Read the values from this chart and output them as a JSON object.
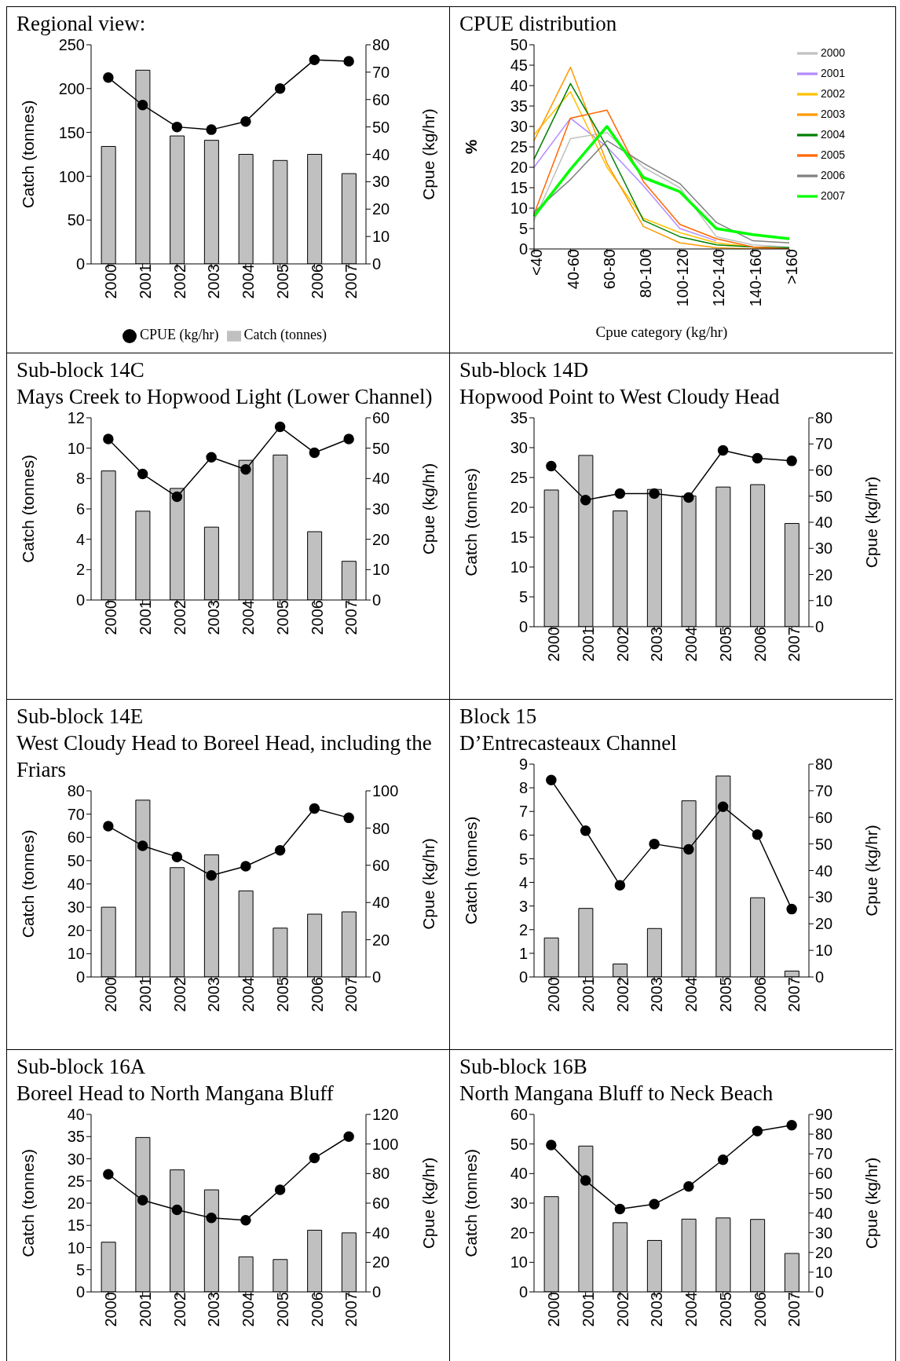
{
  "chart_data": [
    {
      "type": "bar",
      "title": "Regional view:",
      "ylabel": "Catch (tonnes)",
      "y2label": "Cpue (kg/hr)",
      "categories": [
        "2000",
        "2001",
        "2002",
        "2003",
        "2004",
        "2005",
        "2006",
        "2007"
      ],
      "ylim": [
        0,
        250
      ],
      "yticks": [
        0,
        50,
        100,
        150,
        200,
        250
      ],
      "y2lim": [
        0,
        80
      ],
      "y2ticks": [
        0,
        10,
        20,
        30,
        40,
        50,
        60,
        70,
        80
      ],
      "grid": false,
      "legend": "bottom",
      "series": [
        {
          "name": "Catch (tonnes)",
          "color": "#c0c0c0",
          "values": [
            134,
            221,
            146,
            141,
            125,
            118,
            125,
            103
          ]
        },
        {
          "name": "CPUE (kg/hr)",
          "type": "line",
          "axis": "y2",
          "marker": "circle",
          "color": "#000000",
          "values": [
            68,
            58,
            50,
            49,
            52,
            64,
            74.5,
            74
          ]
        }
      ]
    },
    {
      "type": "line",
      "title": "CPUE distribution",
      "xlabel": "Cpue category (kg/hr)",
      "ylabel": "%",
      "categories": [
        "<40",
        "40-60",
        "60-80",
        "80-100",
        "100-120",
        "120-140",
        "140-160",
        ">160"
      ],
      "ylim": [
        0,
        50
      ],
      "yticks": [
        0,
        5,
        10,
        15,
        20,
        25,
        30,
        35,
        40,
        45,
        50
      ],
      "grid": false,
      "legend": "top right",
      "marker": "none",
      "series": [
        {
          "name": "2000",
          "color": "#c0c0c0",
          "values": [
            7,
            27,
            28.5,
            20,
            15,
            3,
            1,
            0.5
          ]
        },
        {
          "name": "2001",
          "color": "#b28cff",
          "values": [
            20,
            32,
            25,
            15.5,
            5,
            2,
            null,
            null
          ]
        },
        {
          "name": "2002",
          "color": "#ffc000",
          "values": [
            28,
            38.5,
            20,
            7.5,
            4,
            1.5,
            0.5,
            0
          ]
        },
        {
          "name": "2003",
          "color": "#ff9900",
          "values": [
            26.5,
            44.5,
            21,
            5.5,
            1.5,
            0.3,
            0,
            0
          ]
        },
        {
          "name": "2004",
          "color": "#008000",
          "values": [
            22,
            40.5,
            25,
            7,
            3,
            1,
            0.5,
            0.3
          ]
        },
        {
          "name": "2005",
          "color": "#ff6600",
          "values": [
            8.5,
            32,
            34,
            16.5,
            6,
            2.5,
            0.5,
            0
          ]
        },
        {
          "name": "2006",
          "color": "#808080",
          "values": [
            9,
            17,
            26.5,
            21,
            16,
            6.5,
            2,
            1.5
          ]
        },
        {
          "name": "2007",
          "color": "#00ff00",
          "values": [
            8,
            19.5,
            30,
            17.5,
            14,
            5,
            3.5,
            2.5
          ]
        }
      ]
    },
    {
      "type": "bar",
      "title": "Sub-block 14C",
      "subtitle": "Mays Creek to Hopwood Light (Lower Channel)",
      "ylabel": "Catch (tonnes)",
      "y2label": "Cpue (kg/hr)",
      "categories": [
        "2000",
        "2001",
        "2002",
        "2003",
        "2004",
        "2005",
        "2006",
        "2007"
      ],
      "ylim": [
        0,
        12
      ],
      "yticks": [
        0,
        2,
        4,
        6,
        8,
        10,
        12
      ],
      "y2lim": [
        0,
        60
      ],
      "y2ticks": [
        0,
        10,
        20,
        30,
        40,
        50,
        60
      ],
      "grid": false,
      "series": [
        {
          "color": "#c0c0c0",
          "values": [
            8.5,
            5.85,
            7.35,
            4.8,
            9.2,
            9.55,
            4.5,
            2.55
          ]
        },
        {
          "type": "line",
          "axis": "y2",
          "marker": "circle",
          "color": "#000000",
          "values": [
            53,
            41.5,
            34,
            47,
            43,
            57,
            48.5,
            53
          ]
        }
      ]
    },
    {
      "type": "bar",
      "title": "Sub-block 14D",
      "subtitle": "Hopwood Point to West Cloudy Head",
      "ylabel": "Catch (tonnes)",
      "y2label": "Cpue (kg/hr)",
      "categories": [
        "2000",
        "2001",
        "2002",
        "2003",
        "2004",
        "2005",
        "2006",
        "2007"
      ],
      "ylim": [
        0,
        35
      ],
      "yticks": [
        0,
        5,
        10,
        15,
        20,
        25,
        30,
        35
      ],
      "y2lim": [
        0,
        80
      ],
      "y2ticks": [
        0,
        10,
        20,
        30,
        40,
        50,
        60,
        70,
        80
      ],
      "grid": false,
      "series": [
        {
          "color": "#c0c0c0",
          "values": [
            22.9,
            28.7,
            19.4,
            23,
            21.9,
            23.4,
            23.8,
            17.3
          ]
        },
        {
          "type": "line",
          "axis": "y2",
          "marker": "circle",
          "color": "#000000",
          "values": [
            61.5,
            48.5,
            51,
            51,
            49.5,
            67.5,
            64.5,
            63.5
          ]
        }
      ]
    },
    {
      "type": "bar",
      "title": "Sub-block 14E",
      "subtitle": "West Cloudy Head to Boreel Head, including the Friars",
      "ylabel": "Catch (tonnes)",
      "y2label": "Cpue (kg/hr)",
      "categories": [
        "2000",
        "2001",
        "2002",
        "2003",
        "2004",
        "2005",
        "2006",
        "2007"
      ],
      "ylim": [
        0,
        80
      ],
      "yticks": [
        0,
        10,
        20,
        30,
        40,
        50,
        60,
        70,
        80
      ],
      "y2lim": [
        0,
        100
      ],
      "y2ticks": [
        0,
        20,
        40,
        60,
        80,
        100
      ],
      "grid": false,
      "series": [
        {
          "color": "#c0c0c0",
          "values": [
            30,
            76,
            47,
            52.5,
            37,
            21,
            27,
            28
          ]
        },
        {
          "type": "line",
          "axis": "y2",
          "marker": "circle",
          "color": "#000000",
          "values": [
            81,
            70.5,
            64.5,
            54.5,
            59.5,
            68,
            90.5,
            85.5
          ]
        }
      ]
    },
    {
      "type": "bar",
      "title": "Block 15",
      "subtitle": "D’Entrecasteaux Channel",
      "ylabel": "Catch (tonnes)",
      "y2label": "Cpue (kg/hr)",
      "categories": [
        "2000",
        "2001",
        "2002",
        "2003",
        "2004",
        "2005",
        "2006",
        "2007"
      ],
      "ylim": [
        0,
        9
      ],
      "yticks": [
        0,
        1,
        2,
        3,
        4,
        5,
        6,
        7,
        8,
        9
      ],
      "y2lim": [
        0,
        80
      ],
      "y2ticks": [
        0,
        10,
        20,
        30,
        40,
        50,
        60,
        70,
        80
      ],
      "grid": false,
      "series": [
        {
          "color": "#c0c0c0",
          "values": [
            1.65,
            2.9,
            0.55,
            2.05,
            7.45,
            8.5,
            3.35,
            0.25
          ]
        },
        {
          "type": "line",
          "axis": "y2",
          "marker": "circle",
          "color": "#000000",
          "values": [
            74,
            55,
            34.5,
            50,
            48,
            64,
            53.5,
            25.5
          ]
        }
      ]
    },
    {
      "type": "bar",
      "title": "Sub-block 16A",
      "subtitle": "Boreel Head to North Mangana Bluff",
      "ylabel": "Catch (tonnes)",
      "y2label": "Cpue (kg/hr)",
      "categories": [
        "2000",
        "2001",
        "2002",
        "2003",
        "2004",
        "2005",
        "2006",
        "2007"
      ],
      "ylim": [
        0,
        40
      ],
      "yticks": [
        0,
        5,
        10,
        15,
        20,
        25,
        30,
        35,
        40
      ],
      "y2lim": [
        0,
        120
      ],
      "y2ticks": [
        0,
        20,
        40,
        60,
        80,
        100,
        120
      ],
      "grid": false,
      "series": [
        {
          "color": "#c0c0c0",
          "values": [
            11.2,
            34.8,
            27.5,
            23,
            7.9,
            7.3,
            13.9,
            13.3
          ]
        },
        {
          "type": "line",
          "axis": "y2",
          "marker": "circle",
          "color": "#000000",
          "values": [
            79.5,
            62,
            55.5,
            50,
            48.5,
            69,
            90.5,
            105
          ]
        }
      ]
    },
    {
      "type": "bar",
      "title": "Sub-block 16B",
      "subtitle": "North Mangana Bluff to Neck Beach",
      "ylabel": "Catch (tonnes)",
      "y2label": "Cpue (kg/hr)",
      "categories": [
        "2000",
        "2001",
        "2002",
        "2003",
        "2004",
        "2005",
        "2006",
        "2007"
      ],
      "ylim": [
        0,
        60
      ],
      "yticks": [
        0,
        10,
        20,
        30,
        40,
        50,
        60
      ],
      "y2lim": [
        0,
        90
      ],
      "y2ticks": [
        0,
        10,
        20,
        30,
        40,
        50,
        60,
        70,
        80,
        90
      ],
      "grid": false,
      "series": [
        {
          "color": "#c0c0c0",
          "values": [
            32.2,
            49.3,
            23.4,
            17.4,
            24.6,
            25,
            24.5,
            13
          ]
        },
        {
          "type": "line",
          "axis": "y2",
          "marker": "circle",
          "color": "#000000",
          "values": [
            74.5,
            56.5,
            42,
            44.5,
            53.5,
            67,
            81.5,
            84.5
          ]
        }
      ]
    }
  ]
}
